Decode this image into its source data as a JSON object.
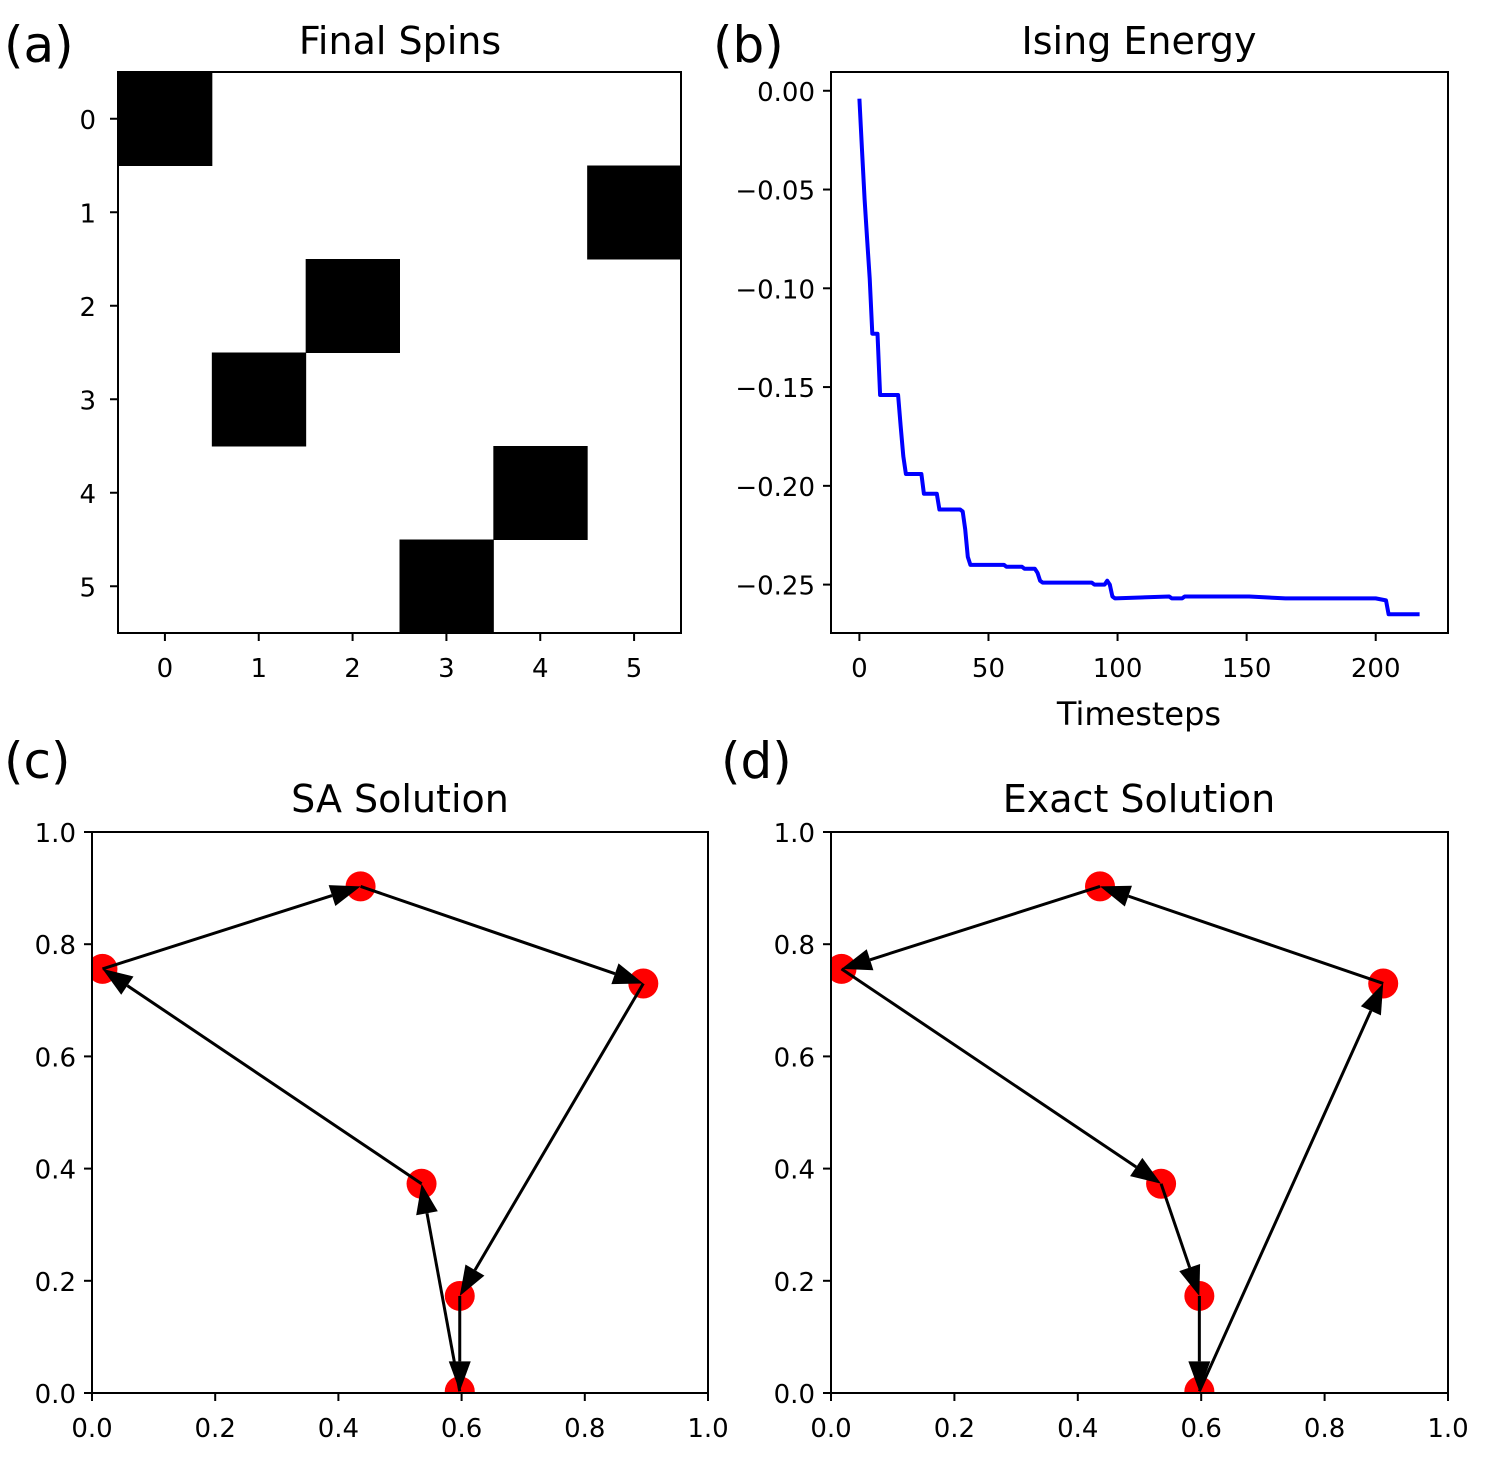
{
  "chart_data": [
    {
      "panel": "(a)",
      "type": "heatmap",
      "title": "Final Spins",
      "xticks": [
        "0",
        "1",
        "2",
        "3",
        "4",
        "5"
      ],
      "yticks": [
        "0",
        "1",
        "2",
        "3",
        "4",
        "5"
      ],
      "colormap": {
        "0": "#ffffff",
        "1": "#000000"
      },
      "matrix": [
        [
          1,
          0,
          0,
          0,
          0,
          0
        ],
        [
          0,
          0,
          0,
          0,
          0,
          1
        ],
        [
          0,
          0,
          1,
          0,
          0,
          0
        ],
        [
          0,
          1,
          0,
          0,
          0,
          0
        ],
        [
          0,
          0,
          0,
          0,
          1,
          0
        ],
        [
          0,
          0,
          0,
          1,
          0,
          0
        ]
      ]
    },
    {
      "panel": "(b)",
      "type": "line",
      "title": "Ising Energy",
      "xlabel": "Timesteps",
      "ylabel": "",
      "xlim": [
        -11,
        228
      ],
      "ylim": [
        -0.2745,
        0.0095
      ],
      "xticks": [
        0,
        50,
        100,
        150,
        200
      ],
      "xtick_labels": [
        "0",
        "50",
        "100",
        "150",
        "200"
      ],
      "yticks": [
        0,
        -0.05,
        -0.1,
        -0.15,
        -0.2,
        -0.25
      ],
      "ytick_labels": [
        "0.00",
        "−0.05",
        "−0.10",
        "−0.15",
        "−0.20",
        "−0.25"
      ],
      "color": "#0000ff",
      "x": [
        0,
        1,
        2,
        3,
        4,
        5,
        6,
        7,
        8,
        9,
        10,
        15,
        16,
        17,
        18,
        19,
        20,
        24,
        25,
        26,
        27,
        30,
        31,
        32,
        38,
        39,
        40,
        41,
        42,
        43,
        44,
        45,
        46,
        56,
        57,
        63,
        64,
        68,
        69,
        70,
        71,
        90,
        91,
        95,
        96,
        97,
        98,
        99,
        120,
        121,
        125,
        126,
        150,
        151,
        165,
        166,
        200,
        204,
        205,
        217
      ],
      "y": [
        -0.004,
        -0.03,
        -0.055,
        -0.075,
        -0.095,
        -0.123,
        -0.123,
        -0.123,
        -0.154,
        -0.154,
        -0.154,
        -0.154,
        -0.17,
        -0.185,
        -0.194,
        -0.194,
        -0.194,
        -0.194,
        -0.204,
        -0.204,
        -0.204,
        -0.204,
        -0.212,
        -0.212,
        -0.212,
        -0.212,
        -0.213,
        -0.222,
        -0.236,
        -0.24,
        -0.24,
        -0.24,
        -0.24,
        -0.24,
        -0.241,
        -0.241,
        -0.242,
        -0.242,
        -0.244,
        -0.248,
        -0.249,
        -0.249,
        -0.25,
        -0.25,
        -0.248,
        -0.25,
        -0.256,
        -0.257,
        -0.256,
        -0.257,
        -0.257,
        -0.256,
        -0.256,
        -0.256,
        -0.257,
        -0.257,
        -0.257,
        -0.258,
        -0.265,
        -0.265
      ]
    },
    {
      "panel": "(c)",
      "type": "scatter",
      "title": "SA Solution",
      "xlim": [
        0,
        1
      ],
      "ylim": [
        0,
        1
      ],
      "ticks": [
        0,
        0.2,
        0.4,
        0.6,
        0.8,
        1.0
      ],
      "tick_labels": [
        "0.0",
        "0.2",
        "0.4",
        "0.6",
        "0.8",
        "1.0"
      ],
      "point_color": "#ff0000",
      "arrow_color": "#000000",
      "points": [
        [
          0.017,
          0.756
        ],
        [
          0.436,
          0.903
        ],
        [
          0.895,
          0.73
        ],
        [
          0.597,
          0.173
        ],
        [
          0.597,
          0.003
        ],
        [
          0.535,
          0.373
        ]
      ],
      "tour": [
        0,
        1,
        2,
        3,
        4,
        5,
        0
      ]
    },
    {
      "panel": "(d)",
      "type": "scatter",
      "title": "Exact Solution",
      "xlim": [
        0,
        1
      ],
      "ylim": [
        0,
        1
      ],
      "ticks": [
        0,
        0.2,
        0.4,
        0.6,
        0.8,
        1.0
      ],
      "tick_labels": [
        "0.0",
        "0.2",
        "0.4",
        "0.6",
        "0.8",
        "1.0"
      ],
      "point_color": "#ff0000",
      "arrow_color": "#000000",
      "points": [
        [
          0.017,
          0.756
        ],
        [
          0.436,
          0.903
        ],
        [
          0.895,
          0.73
        ],
        [
          0.597,
          0.173
        ],
        [
          0.597,
          0.003
        ],
        [
          0.535,
          0.373
        ]
      ],
      "tour": [
        0,
        5,
        3,
        4,
        2,
        1,
        0
      ]
    }
  ]
}
